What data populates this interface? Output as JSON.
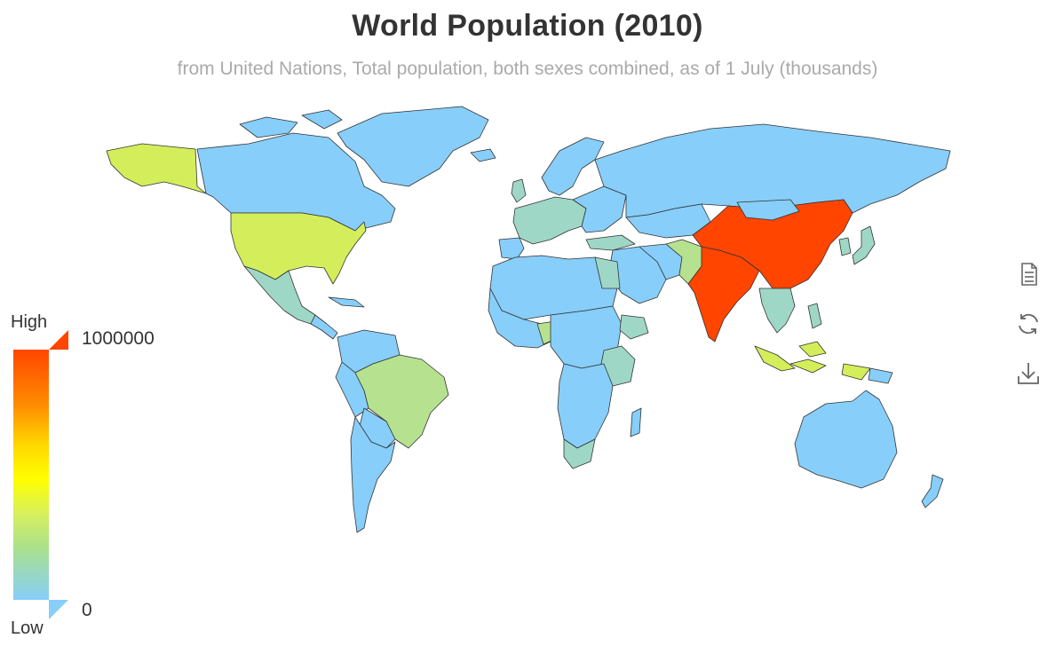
{
  "title": "World Population (2010)",
  "subtitle": "from United Nations, Total population, both sexes combined, as of 1 July (thousands)",
  "legend": {
    "high_label": "High",
    "low_label": "Low",
    "max_value": "1000000",
    "min_value": "0"
  },
  "colors": {
    "very_high": "#ff4500",
    "high": "#d4ee5b",
    "mid": "#b6e28f",
    "lowmid": "#9fd7c7",
    "low": "#87cefa",
    "border": "#333333"
  },
  "toolbox": [
    "data-view-icon",
    "restore-icon",
    "save-image-icon"
  ],
  "map_data": {
    "metric": "Total population, both sexes combined, as of 1 July (thousands)",
    "range": [
      0,
      1000000
    ],
    "highlights": [
      {
        "country": "China",
        "level": "very_high"
      },
      {
        "country": "India",
        "level": "very_high"
      },
      {
        "country": "United States",
        "level": "high"
      },
      {
        "country": "Indonesia",
        "level": "high"
      },
      {
        "country": "Brazil",
        "level": "mid"
      },
      {
        "country": "Pakistan",
        "level": "mid"
      },
      {
        "country": "Nigeria",
        "level": "mid"
      },
      {
        "country": "Russia",
        "level": "low"
      },
      {
        "country": "Canada",
        "level": "low"
      },
      {
        "country": "Australia",
        "level": "low"
      }
    ]
  }
}
